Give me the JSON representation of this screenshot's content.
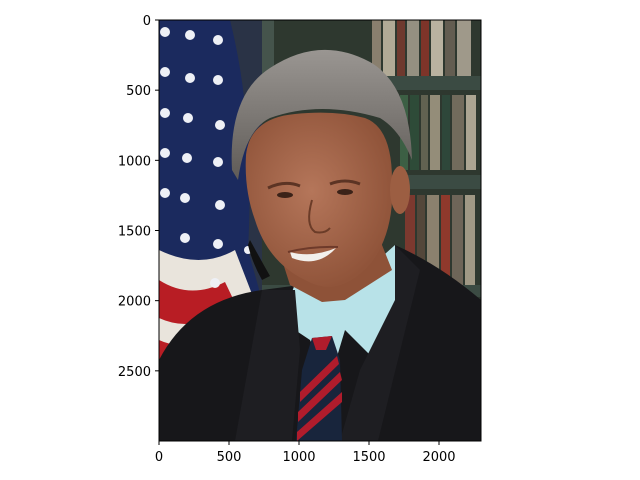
{
  "chart_data": {
    "type": "image",
    "title": "",
    "xlabel": "",
    "ylabel": "",
    "xlim": [
      0,
      2300
    ],
    "ylim": [
      3000,
      0
    ],
    "y_inverted": true,
    "grid": false,
    "x_ticks": [
      0,
      500,
      1000,
      1500,
      2000
    ],
    "x_tick_labels": [
      "0",
      "500",
      "1000",
      "1500",
      "2000"
    ],
    "y_ticks": [
      0,
      500,
      1000,
      1500,
      2000,
      2500
    ],
    "y_tick_labels": [
      "0",
      "500",
      "1000",
      "1500",
      "2000",
      "2500"
    ],
    "image_content": "portrait photo: man in dark suit, light blue shirt, striped tie, in front of US flag and bookshelves",
    "colors": {
      "flag_blue": "#1b2a5e",
      "flag_red": "#b81d24",
      "flag_white": "#e9e4dc",
      "bookshelf": "#2c3a30",
      "suit": "#17171a",
      "shirt": "#b8e2e8",
      "tie": "#18253c",
      "tie_stripe": "#b01c2c",
      "hair": "#7d7a76",
      "skin": "#a5664a",
      "axis": "#000000"
    }
  }
}
